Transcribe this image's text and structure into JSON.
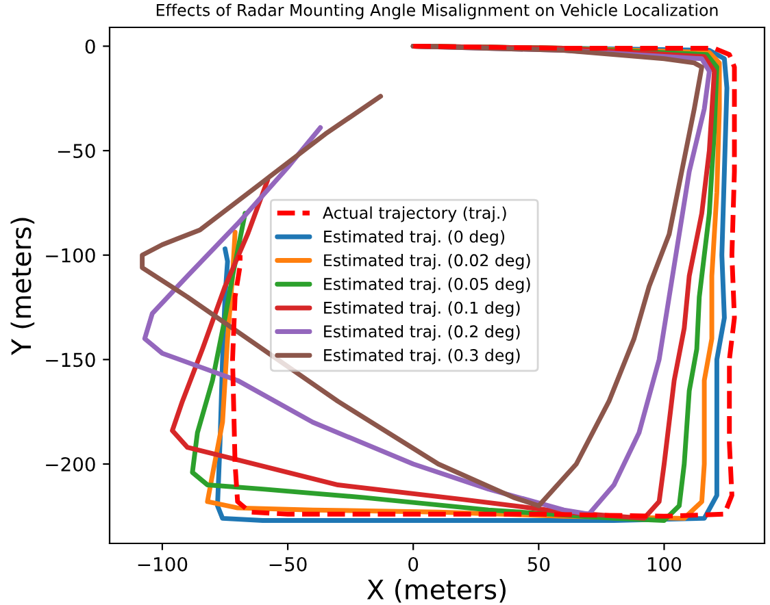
{
  "chart_data": {
    "type": "line",
    "title": "Effects of Radar Mounting Angle Misalignment on Vehicle Localization",
    "xlabel": "X (meters)",
    "ylabel": "Y (meters)",
    "xlim": [
      -121,
      140
    ],
    "ylim": [
      -238,
      9
    ],
    "xticks": [
      {
        "value": -100,
        "label": "−100"
      },
      {
        "value": -50,
        "label": "−50"
      },
      0,
      50,
      100
    ],
    "yticks": [
      {
        "value": -200,
        "label": "−200"
      },
      {
        "value": -150,
        "label": "−150"
      },
      {
        "value": -100,
        "label": "−100"
      },
      {
        "value": -50,
        "label": "−50"
      },
      0
    ],
    "grid": false,
    "legend": "center",
    "series": [
      {
        "name": "Actual trajectory (traj.)",
        "color": "#ff0000",
        "line_style": "dashed",
        "x": [
          0,
          60,
          120,
          126,
          128,
          128,
          127,
          128,
          126,
          126,
          127,
          124,
          100,
          50,
          0,
          -50,
          -65,
          -70,
          -71,
          -72,
          -71,
          -69,
          -69
        ],
        "values": [
          0,
          -1,
          -1,
          -4,
          -10,
          -60,
          -100,
          -130,
          -150,
          -190,
          -215,
          -224,
          -225,
          -224,
          -224,
          -224,
          -223,
          -218,
          -200,
          -150,
          -120,
          -105,
          -100
        ]
      },
      {
        "name": "Estimated traj. (0 deg)",
        "color": "#1f77b4",
        "line_style": "solid",
        "x": [
          0,
          60,
          118,
          124,
          125,
          124,
          123,
          124,
          121,
          121,
          121,
          116,
          80,
          30,
          -20,
          -60,
          -76,
          -78,
          -77,
          -76,
          -75,
          -74,
          -75
        ],
        "values": [
          0,
          -1,
          -2,
          -6,
          -20,
          -60,
          -100,
          -130,
          -150,
          -190,
          -215,
          -226,
          -227,
          -227,
          -227,
          -227,
          -226,
          -220,
          -190,
          -150,
          -120,
          -103,
          -97
        ]
      },
      {
        "name": "Estimated traj. (0.02 deg)",
        "color": "#ff7f0e",
        "line_style": "solid",
        "x": [
          0,
          60,
          118,
          122,
          122,
          121,
          119,
          119,
          116,
          116,
          115,
          108,
          60,
          10,
          -40,
          -70,
          -82,
          -80,
          -76,
          -74,
          -72,
          -71
        ],
        "values": [
          0,
          -1,
          -3,
          -8,
          -30,
          -70,
          -110,
          -140,
          -160,
          -200,
          -218,
          -226,
          -225,
          -223,
          -222,
          -221,
          -218,
          -205,
          -180,
          -140,
          -110,
          -89
        ]
      },
      {
        "name": "Estimated traj. (0.05 deg)",
        "color": "#2ca02c",
        "line_style": "solid",
        "x": [
          0,
          60,
          117,
          121,
          120,
          118,
          114,
          113,
          110,
          108,
          106,
          100,
          80,
          30,
          -20,
          -60,
          -82,
          -88,
          -86,
          -80,
          -75,
          -72,
          -67
        ],
        "values": [
          0,
          -1,
          -4,
          -10,
          -40,
          -80,
          -120,
          -145,
          -165,
          -200,
          -220,
          -227,
          -226,
          -222,
          -216,
          -212,
          -210,
          -204,
          -185,
          -160,
          -130,
          -110,
          -80
        ]
      },
      {
        "name": "Estimated traj. (0.1 deg)",
        "color": "#d62728",
        "line_style": "solid",
        "x": [
          0,
          60,
          116,
          120,
          118,
          115,
          110,
          108,
          104,
          100,
          98,
          92,
          60,
          20,
          -30,
          -70,
          -90,
          -96,
          -92,
          -84,
          -75,
          -66,
          -58
        ],
        "values": [
          0,
          -1,
          -5,
          -12,
          -50,
          -80,
          -110,
          -135,
          -160,
          -200,
          -218,
          -226,
          -223,
          -217,
          -210,
          -198,
          -192,
          -184,
          -170,
          -145,
          -115,
          -90,
          -64
        ]
      },
      {
        "name": "Estimated traj. (0.2 deg)",
        "color": "#9467bd",
        "line_style": "solid",
        "x": [
          0,
          60,
          115,
          118,
          116,
          110,
          106,
          102,
          98,
          90,
          80,
          70,
          60,
          30,
          0,
          -40,
          -70,
          -100,
          -107,
          -104,
          -90,
          -70,
          -50,
          -37
        ],
        "values": [
          0,
          -2,
          -6,
          -12,
          -30,
          -60,
          -90,
          -120,
          -150,
          -185,
          -210,
          -224,
          -222,
          -212,
          -200,
          -180,
          -160,
          -147,
          -140,
          -128,
          -110,
          -85,
          -58,
          -39
        ]
      },
      {
        "name": "Estimated traj. (0.3 deg)",
        "color": "#8c564b",
        "line_style": "solid",
        "x": [
          0,
          60,
          100,
          112,
          115,
          112,
          107,
          102,
          94,
          88,
          78,
          65,
          50,
          40,
          10,
          -30,
          -60,
          -90,
          -108,
          -108,
          -100,
          -85,
          -60,
          -35,
          -13
        ],
        "values": [
          0,
          -2,
          -6,
          -8,
          -10,
          -30,
          -60,
          -90,
          -115,
          -140,
          -170,
          -200,
          -220,
          -216,
          -200,
          -170,
          -145,
          -120,
          -106,
          -100,
          -95,
          -88,
          -65,
          -42,
          -24
        ]
      }
    ]
  }
}
